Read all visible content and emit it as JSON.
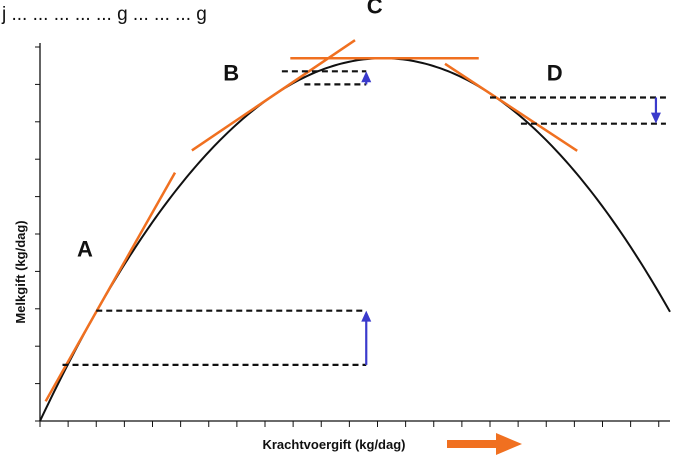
{
  "header_fragment": "j  ...  ...  ...  ...  ...  g  ...  ...  ...  g",
  "chart_data": {
    "type": "line",
    "title": "",
    "xlabel": "Krachtvoergift (kg/dag)",
    "ylabel": "Melkgift (kg/dag)",
    "xlim": [
      0,
      22.4
    ],
    "ylim": [
      0,
      10
    ],
    "x_ticks": [
      0,
      1,
      2,
      3,
      4,
      5,
      6,
      7,
      8,
      9,
      10,
      11,
      12,
      13,
      14,
      15,
      16,
      17,
      18,
      19,
      20,
      21,
      22
    ],
    "y_ticks": [
      0,
      1,
      2,
      3,
      4,
      5,
      6,
      7,
      8,
      9,
      10
    ],
    "tick_labels_shown": false,
    "grid": false,
    "curve": {
      "shape": "parabola",
      "vertex": [
        12.2,
        9.7
      ],
      "x": [
        0,
        2,
        4,
        6,
        8,
        10,
        12.2,
        14,
        16,
        18,
        20,
        22
      ],
      "y": [
        0,
        3.22,
        5.61,
        7.45,
        8.74,
        9.49,
        9.7,
        9.55,
        8.88,
        7.62,
        5.78,
        3.33
      ]
    },
    "tangent_color": "#f07020",
    "arrow_color": "#3a3acc",
    "highlight_arrow_color": "#f07020",
    "points": [
      {
        "label": "A",
        "x": 2.0,
        "y": 3.22,
        "tangent_x_range": [
          0.2,
          4.8
        ],
        "label_pos": [
          1.6,
          4.4
        ],
        "level_lines": [
          {
            "x_from": 0.8,
            "y": 1.5
          },
          {
            "x_from": 2.0,
            "y": 2.95
          }
        ],
        "arrow": {
          "x": 11.6,
          "from": 1.5,
          "to": 2.95
        }
      },
      {
        "label": "B",
        "x": 8.3,
        "y": 8.9,
        "tangent_x_range": [
          5.4,
          11.2
        ],
        "label_pos": [
          6.8,
          9.1
        ],
        "level_lines": [
          {
            "x_from": 9.4,
            "y": 9.0
          },
          {
            "x_from": 8.6,
            "y": 9.35
          }
        ],
        "arrow": {
          "x": 11.6,
          "from": 9.0,
          "to": 9.35
        }
      },
      {
        "label": "C",
        "x": 12.2,
        "y": 9.7,
        "tangent_x_range": [
          8.9,
          15.6
        ],
        "label_pos": [
          11.9,
          10.9
        ],
        "level_lines": [],
        "arrow": null
      },
      {
        "label": "D",
        "x": 16.0,
        "y": 8.88,
        "tangent_x_range": [
          14.4,
          19.1
        ],
        "label_pos": [
          18.3,
          9.1
        ],
        "level_lines": [
          {
            "x_from": 16.0,
            "y": 8.65
          },
          {
            "x_from": 17.1,
            "y": 7.95
          }
        ],
        "arrow": {
          "x": 21.9,
          "from": 8.65,
          "to": 7.95
        }
      }
    ]
  }
}
